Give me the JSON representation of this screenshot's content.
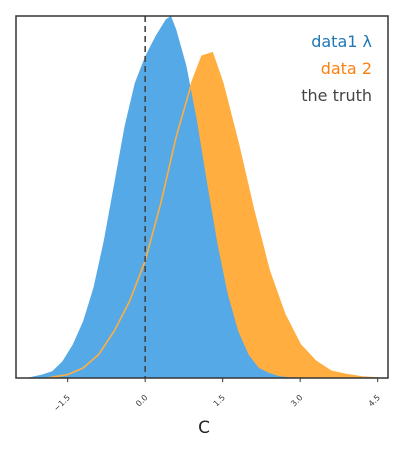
{
  "chart_data": {
    "type": "area",
    "xlabel": "C",
    "ylabel": "",
    "xlim": [
      -2.5,
      4.7
    ],
    "ylim": [
      0,
      1.08
    ],
    "xticks": [
      -1.5,
      0.0,
      1.5,
      3.0,
      4.5
    ],
    "xtick_labels": [
      "−1.5",
      "0.0",
      "1.5",
      "3.0",
      "4.5"
    ],
    "truth_line": {
      "x": 0.0,
      "label": "the truth",
      "color": "#444444"
    },
    "legend_placement": "top-right",
    "series": [
      {
        "name": "data1 λ",
        "legend_label": "data1 λ",
        "color": "#55a9e6",
        "style": "filled",
        "x": [
          -2.3,
          -2.0,
          -1.8,
          -1.6,
          -1.4,
          -1.2,
          -1.0,
          -0.8,
          -0.6,
          -0.4,
          -0.2,
          0.0,
          0.2,
          0.4,
          0.5,
          0.6,
          0.8,
          1.0,
          1.2,
          1.4,
          1.6,
          1.8,
          2.0,
          2.2,
          2.4,
          2.6,
          2.8,
          3.0
        ],
        "y": [
          0.0,
          0.01,
          0.02,
          0.05,
          0.1,
          0.17,
          0.27,
          0.41,
          0.58,
          0.75,
          0.88,
          0.96,
          1.02,
          1.07,
          1.08,
          1.04,
          0.93,
          0.77,
          0.58,
          0.4,
          0.25,
          0.14,
          0.07,
          0.03,
          0.015,
          0.005,
          0.002,
          0.0
        ]
      },
      {
        "name": "data 2",
        "legend_label": "data 2",
        "color": "#ffae3f",
        "style": "filled-outline",
        "x": [
          -1.9,
          -1.5,
          -1.2,
          -0.9,
          -0.6,
          -0.3,
          0.0,
          0.3,
          0.6,
          0.9,
          1.1,
          1.3,
          1.5,
          1.8,
          2.1,
          2.4,
          2.7,
          3.0,
          3.3,
          3.6,
          3.9,
          4.2,
          4.5
        ],
        "y": [
          0.0,
          0.01,
          0.03,
          0.07,
          0.14,
          0.23,
          0.35,
          0.52,
          0.72,
          0.88,
          0.96,
          0.97,
          0.88,
          0.7,
          0.5,
          0.32,
          0.19,
          0.1,
          0.05,
          0.02,
          0.01,
          0.003,
          0.0
        ]
      }
    ]
  }
}
